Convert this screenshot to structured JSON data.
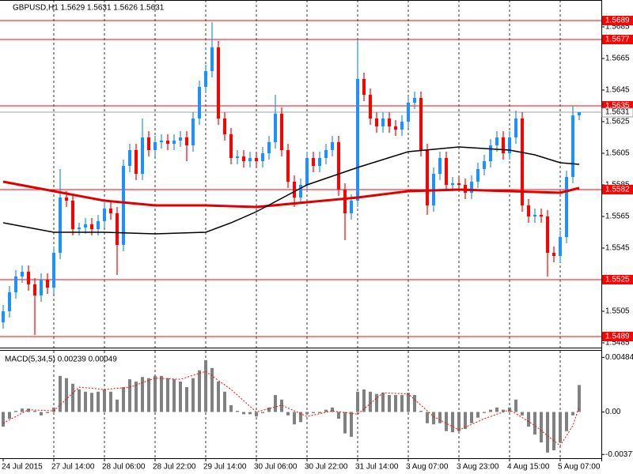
{
  "chart_data": [
    {
      "type": "candlestick",
      "title": "GBPUSD,H1  1.5629 1.5631 1.5626 1.5631",
      "candles": [
        [
          1.5498,
          1.5509,
          1.5494,
          1.5505
        ],
        [
          1.5505,
          1.5521,
          1.5501,
          1.5517
        ],
        [
          1.5517,
          1.5531,
          1.5513,
          1.5527
        ],
        [
          1.5527,
          1.5534,
          1.5523,
          1.553
        ],
        [
          1.553,
          1.5534,
          1.5518,
          1.5522
        ],
        [
          1.5522,
          1.5526,
          1.549,
          1.5515
        ],
        [
          1.5515,
          1.5529,
          1.5511,
          1.5525
        ],
        [
          1.5525,
          1.5529,
          1.5516,
          1.552
        ],
        [
          1.552,
          1.5546,
          1.5516,
          1.5542
        ],
        [
          1.5542,
          1.5595,
          1.5538,
          1.5577
        ],
        [
          1.5577,
          1.5581,
          1.5571,
          1.5575
        ],
        [
          1.5575,
          1.5579,
          1.5553,
          1.5557
        ],
        [
          1.5557,
          1.5561,
          1.5553,
          1.5558
        ],
        [
          1.5558,
          1.5564,
          1.5554,
          1.556
        ],
        [
          1.556,
          1.5564,
          1.5553,
          1.5557
        ],
        [
          1.5557,
          1.5566,
          1.5553,
          1.5562
        ],
        [
          1.5562,
          1.5574,
          1.5558,
          1.557
        ],
        [
          1.557,
          1.5574,
          1.5563,
          1.5567
        ],
        [
          1.5567,
          1.5571,
          1.5528,
          1.5547
        ],
        [
          1.5547,
          1.5601,
          1.5543,
          1.5597
        ],
        [
          1.5597,
          1.5611,
          1.5593,
          1.5607
        ],
        [
          1.5607,
          1.5611,
          1.5588,
          1.5592
        ],
        [
          1.5592,
          1.5627,
          1.5588,
          1.5615
        ],
        [
          1.5615,
          1.5619,
          1.5603,
          1.5607
        ],
        [
          1.5607,
          1.5616,
          1.5603,
          1.5612
        ],
        [
          1.5612,
          1.5617,
          1.5608,
          1.5613
        ],
        [
          1.5613,
          1.5617,
          1.5607,
          1.5611
        ],
        [
          1.5611,
          1.5617,
          1.5607,
          1.5613
        ],
        [
          1.5613,
          1.5619,
          1.5609,
          1.5615
        ],
        [
          1.5615,
          1.5619,
          1.56,
          1.561
        ],
        [
          1.561,
          1.5631,
          1.5606,
          1.5627
        ],
        [
          1.5627,
          1.5651,
          1.5623,
          1.5647
        ],
        [
          1.5647,
          1.5661,
          1.5643,
          1.5657
        ],
        [
          1.5657,
          1.5688,
          1.5653,
          1.5672
        ],
        [
          1.5672,
          1.5676,
          1.5623,
          1.5627
        ],
        [
          1.5627,
          1.5631,
          1.5613,
          1.5617
        ],
        [
          1.5617,
          1.5621,
          1.5598,
          1.5602
        ],
        [
          1.5602,
          1.5607,
          1.5598,
          1.5603
        ],
        [
          1.5603,
          1.5607,
          1.5596,
          1.56
        ],
        [
          1.56,
          1.5606,
          1.5596,
          1.5602
        ],
        [
          1.5602,
          1.5606,
          1.5596,
          1.56
        ],
        [
          1.56,
          1.5609,
          1.5596,
          1.5605
        ],
        [
          1.5605,
          1.5616,
          1.5601,
          1.5612
        ],
        [
          1.5612,
          1.5642,
          1.5608,
          1.563
        ],
        [
          1.563,
          1.5634,
          1.5603,
          1.5607
        ],
        [
          1.5607,
          1.5611,
          1.5583,
          1.5587
        ],
        [
          1.5587,
          1.5591,
          1.5571,
          1.5577
        ],
        [
          1.5577,
          1.5589,
          1.5573,
          1.5585
        ],
        [
          1.5585,
          1.5606,
          1.5581,
          1.5602
        ],
        [
          1.5602,
          1.5606,
          1.5593,
          1.5597
        ],
        [
          1.5597,
          1.5606,
          1.5593,
          1.5602
        ],
        [
          1.5602,
          1.5611,
          1.5598,
          1.5607
        ],
        [
          1.5607,
          1.5616,
          1.5603,
          1.5612
        ],
        [
          1.5612,
          1.5616,
          1.5578,
          1.5582
        ],
        [
          1.5582,
          1.5586,
          1.555,
          1.5567
        ],
        [
          1.5567,
          1.5579,
          1.5563,
          1.5575
        ],
        [
          1.5575,
          1.5677,
          1.5571,
          1.5652
        ],
        [
          1.5652,
          1.5656,
          1.5638,
          1.5642
        ],
        [
          1.5642,
          1.5646,
          1.5623,
          1.5627
        ],
        [
          1.5627,
          1.5631,
          1.5618,
          1.5622
        ],
        [
          1.5622,
          1.5631,
          1.5618,
          1.5627
        ],
        [
          1.5627,
          1.5631,
          1.5618,
          1.5622
        ],
        [
          1.5622,
          1.5626,
          1.5616,
          1.562
        ],
        [
          1.562,
          1.5629,
          1.5616,
          1.5625
        ],
        [
          1.5625,
          1.5641,
          1.5621,
          1.5637
        ],
        [
          1.5637,
          1.5644,
          1.5633,
          1.564
        ],
        [
          1.564,
          1.5644,
          1.5603,
          1.5607
        ],
        [
          1.5607,
          1.5611,
          1.5566,
          1.5572
        ],
        [
          1.5572,
          1.5596,
          1.5568,
          1.5592
        ],
        [
          1.5592,
          1.5606,
          1.5588,
          1.5602
        ],
        [
          1.5602,
          1.5606,
          1.5581,
          1.5585
        ],
        [
          1.5585,
          1.559,
          1.5581,
          1.5586
        ],
        [
          1.5586,
          1.559,
          1.5581,
          1.5585
        ],
        [
          1.5585,
          1.5589,
          1.5576,
          1.558
        ],
        [
          1.558,
          1.5591,
          1.5576,
          1.5587
        ],
        [
          1.5587,
          1.5599,
          1.5583,
          1.5595
        ],
        [
          1.5595,
          1.5604,
          1.5591,
          1.56
        ],
        [
          1.56,
          1.5614,
          1.5596,
          1.561
        ],
        [
          1.561,
          1.5619,
          1.5606,
          1.5615
        ],
        [
          1.5615,
          1.5619,
          1.5601,
          1.5605
        ],
        [
          1.5605,
          1.5619,
          1.5601,
          1.5615
        ],
        [
          1.5615,
          1.5632,
          1.5611,
          1.5627
        ],
        [
          1.5627,
          1.5631,
          1.5568,
          1.5572
        ],
        [
          1.5572,
          1.5576,
          1.5561,
          1.5565
        ],
        [
          1.5565,
          1.557,
          1.5561,
          1.5566
        ],
        [
          1.5566,
          1.557,
          1.5561,
          1.5565
        ],
        [
          1.5565,
          1.5569,
          1.5527,
          1.5542
        ],
        [
          1.5542,
          1.5546,
          1.5536,
          1.554
        ],
        [
          1.554,
          1.5556,
          1.5536,
          1.5552
        ],
        [
          1.5552,
          1.5594,
          1.5548,
          1.559
        ],
        [
          1.559,
          1.5635,
          1.5586,
          1.5629
        ],
        [
          1.5629,
          1.5631,
          1.5626,
          1.5631
        ]
      ],
      "up_color": "#1e90ff",
      "down_color": "#ff0000",
      "ylim": [
        1.5482,
        1.5702
      ],
      "yticks": [
        1.5685,
        1.5665,
        1.5645,
        1.5625,
        1.5605,
        1.5585,
        1.5565,
        1.5545,
        1.5525,
        1.5505,
        1.5485
      ],
      "levels": [
        1.5689,
        1.5677,
        1.5635,
        1.5582,
        1.5525,
        1.5489
      ],
      "level_color": "#ff0000",
      "bid": 1.5631,
      "series": [
        {
          "color": "#e00000",
          "x": [
            0,
            8,
            16,
            24,
            32,
            40,
            48,
            56,
            64,
            72,
            80,
            88,
            91
          ],
          "values": [
            1.5587,
            1.5581,
            1.5575,
            1.5572,
            1.5572,
            1.5571,
            1.5574,
            1.5577,
            1.5581,
            1.5582,
            1.5581,
            1.558,
            1.5583
          ]
        },
        {
          "color": "#000000",
          "x": [
            0,
            8,
            16,
            24,
            32,
            36,
            40,
            48,
            56,
            64,
            72,
            80,
            84,
            88,
            91
          ],
          "values": [
            1.5561,
            1.5555,
            1.5555,
            1.5554,
            1.5555,
            1.5561,
            1.5568,
            1.5585,
            1.5596,
            1.5606,
            1.5609,
            1.5607,
            1.5604,
            1.5599,
            1.5598
          ]
        }
      ],
      "grid": true
    },
    {
      "type": "bar",
      "title": "MACD(5,34,5)  0.00239 0.00049",
      "categories": [
        "24 Jul 2015",
        null,
        null,
        null,
        null,
        null,
        null,
        null,
        "27 Jul 14:00",
        null,
        null,
        null,
        null,
        null,
        null,
        null,
        "28 Jul 06:00",
        null,
        null,
        null,
        null,
        null,
        null,
        null,
        "28 Jul 22:00",
        null,
        null,
        null,
        null,
        null,
        null,
        null,
        "29 Jul 14:00",
        null,
        null,
        null,
        null,
        null,
        null,
        null,
        "30 Jul 06:00",
        null,
        null,
        null,
        null,
        null,
        null,
        null,
        "30 Jul 22:00",
        null,
        null,
        null,
        null,
        null,
        null,
        null,
        "31 Jul 14:00",
        null,
        null,
        null,
        null,
        null,
        null,
        null,
        "3 Aug 07:00",
        null,
        null,
        null,
        null,
        null,
        null,
        null,
        "3 Aug 23:00",
        null,
        null,
        null,
        null,
        null,
        null,
        null,
        "4 Aug 15:00",
        null,
        null,
        null,
        null,
        null,
        null,
        null,
        "5 Aug 07:00",
        null,
        null,
        null
      ],
      "values": [
        -0.0013,
        -0.0006,
        0.0001,
        0.0003,
        0.0003,
        0.0001,
        -0.0003,
        -0.0001,
        0.0004,
        0.0032,
        0.003,
        0.0025,
        0.002,
        0.0018,
        0.0017,
        0.0018,
        0.002,
        0.0018,
        0.0011,
        0.0022,
        0.0029,
        0.0027,
        0.0031,
        0.003,
        0.0032,
        0.0032,
        0.003,
        0.0029,
        0.0027,
        0.0022,
        0.003,
        0.0037,
        0.0046,
        0.0039,
        0.0027,
        0.0018,
        0.0006,
        0.0001,
        -0.0002,
        -0.0002,
        -0.0004,
        -0.0001,
        0.0004,
        0.0015,
        0.0011,
        -0.0003,
        -0.0011,
        -0.0009,
        -0.0002,
        -0.0001,
        -0.0001,
        0.0002,
        0.0004,
        -0.0006,
        -0.0019,
        -0.0022,
        0.0018,
        0.002,
        0.0018,
        0.0016,
        0.0017,
        0.0015,
        0.0015,
        0.0015,
        0.0017,
        0.0015,
        0.0001,
        -0.001,
        -0.0011,
        -0.001,
        -0.0017,
        -0.0018,
        -0.0017,
        -0.0015,
        -0.001,
        -0.0005,
        -0.0001,
        0.0002,
        0.0004,
        0.0002,
        0.0004,
        0.0011,
        -0.0003,
        -0.0013,
        -0.002,
        -0.0027,
        -0.0036,
        -0.0034,
        -0.0027,
        -0.0017,
        -0.0003,
        0.00239
      ],
      "color": "#808080",
      "series": [
        {
          "color": "#ff0000",
          "x": [
            0,
            4,
            8,
            12,
            16,
            20,
            24,
            28,
            32,
            36,
            40,
            44,
            48,
            52,
            56,
            60,
            64,
            68,
            72,
            76,
            80,
            84,
            88,
            90,
            91
          ],
          "values": [
            -0.001,
            0.0002,
            0.0001,
            0.0022,
            0.002,
            0.0022,
            0.003,
            0.0029,
            0.0036,
            0.002,
            0.0,
            0.0006,
            -0.0004,
            0.0001,
            -0.0002,
            0.0017,
            0.0016,
            -0.0004,
            -0.0016,
            -0.0006,
            0.0002,
            -0.0012,
            -0.003,
            -0.0012,
            0.00049
          ]
        }
      ],
      "ylim": [
        -0.0041,
        0.0055
      ],
      "yticks": [
        0.00484,
        {
          "value": 0,
          "label": "0.00"
        },
        -0.00377
      ],
      "grid": true
    }
  ]
}
